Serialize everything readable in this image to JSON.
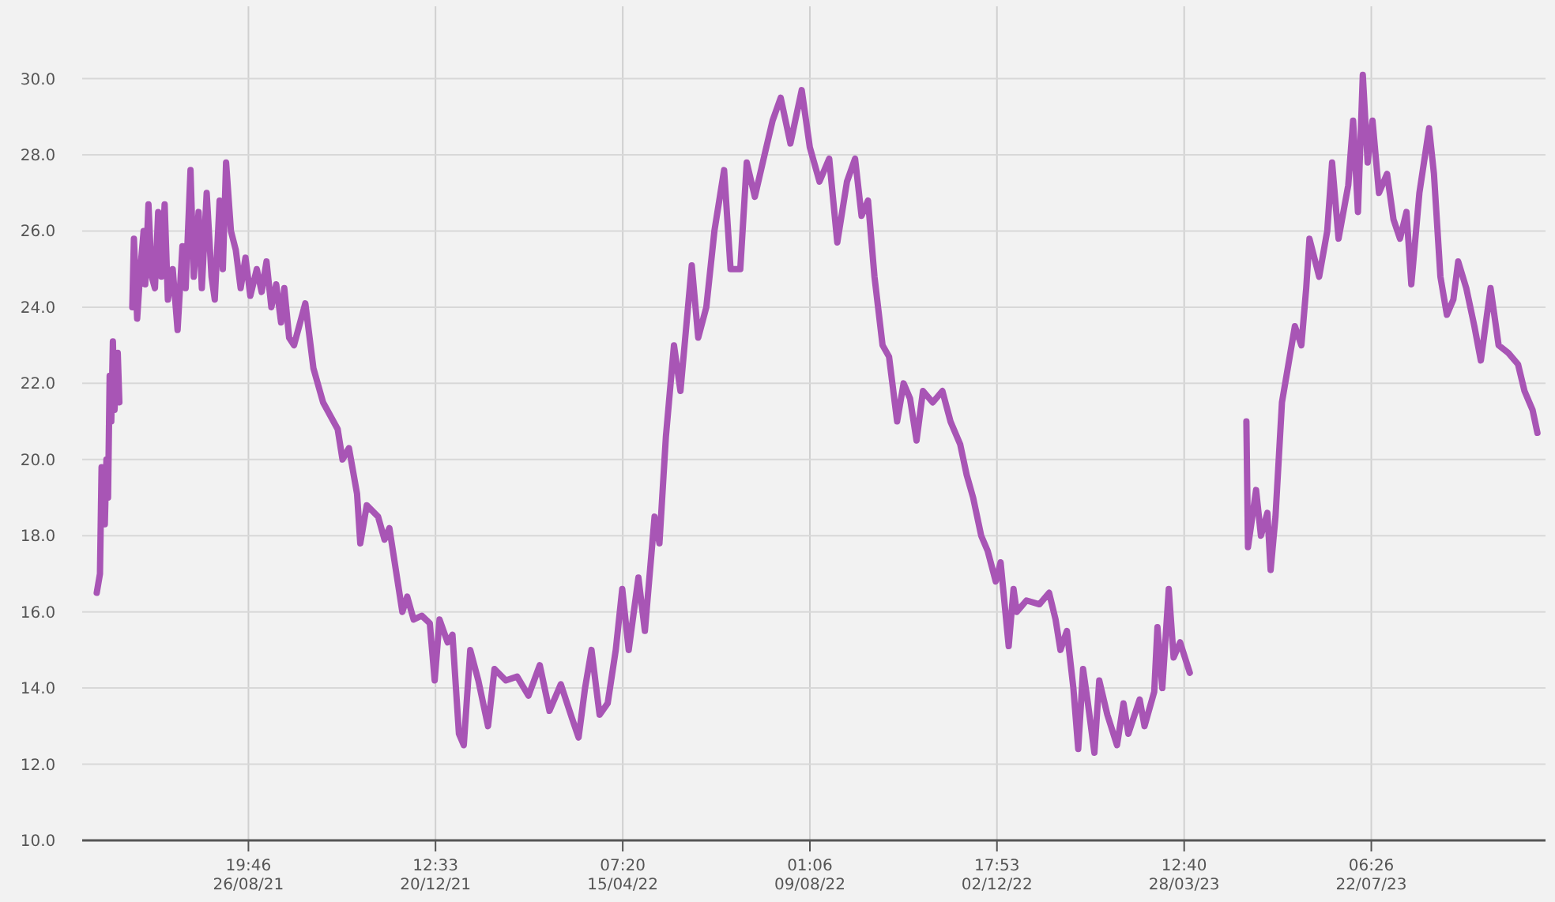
{
  "chart_data": {
    "type": "line",
    "xlim": [
      "2021-05-16",
      "2023-11-07"
    ],
    "ylim": [
      10,
      31.9
    ],
    "xticks": [
      {
        "value": "2021-08-26T19:46",
        "label": "19:46\n26/08/21"
      },
      {
        "value": "2021-12-20T12:33",
        "label": "12:33\n20/12/21"
      },
      {
        "value": "2022-04-15T07:20",
        "label": "07:20\n15/04/22"
      },
      {
        "value": "2022-08-09T01:06",
        "label": "01:06\n09/08/22"
      },
      {
        "value": "2022-12-02T17:53",
        "label": "17:53\n02/12/22"
      },
      {
        "value": "2023-03-28T12:40",
        "label": "12:40\n28/03/23"
      },
      {
        "value": "2023-07-22T06:26",
        "label": "06:26\n22/07/23"
      }
    ],
    "yticks": [
      {
        "value": 10,
        "label": "10.0"
      },
      {
        "value": 12,
        "label": "12.0"
      },
      {
        "value": 14,
        "label": "14.0"
      },
      {
        "value": 16,
        "label": "16.0"
      },
      {
        "value": 18,
        "label": "18.0"
      },
      {
        "value": 20,
        "label": "20.0"
      },
      {
        "value": 22,
        "label": "22.0"
      },
      {
        "value": 24,
        "label": "24.0"
      },
      {
        "value": 26,
        "label": "26.0"
      },
      {
        "value": 28,
        "label": "28.0"
      },
      {
        "value": 30,
        "label": "30.0"
      }
    ],
    "grid": true,
    "line_style": "solid",
    "marker": "none",
    "x": [
      "2021-05-25",
      "2021-05-27",
      "2021-05-28",
      "2021-05-30",
      "2021-05-31",
      "2021-06-01",
      "2021-06-02",
      "2021-06-03",
      "2021-06-04",
      "2021-06-05",
      "2021-06-07",
      "2021-06-08",
      "2021-06-12",
      "2021-06-16",
      "2021-06-17",
      "2021-06-19",
      "2021-06-21",
      "2021-06-23",
      "2021-06-24",
      "2021-06-26",
      "2021-06-28",
      "2021-06-30",
      "2021-07-02",
      "2021-07-04",
      "2021-07-06",
      "2021-07-08",
      "2021-07-11",
      "2021-07-14",
      "2021-07-17",
      "2021-07-19",
      "2021-07-22",
      "2021-07-24",
      "2021-07-27",
      "2021-07-29",
      "2021-08-01",
      "2021-08-04",
      "2021-08-06",
      "2021-08-09",
      "2021-08-11",
      "2021-08-13",
      "2021-08-16",
      "2021-08-19",
      "2021-08-22",
      "2021-08-25",
      "2021-08-28",
      "2021-09-01",
      "2021-09-04",
      "2021-09-07",
      "2021-09-10",
      "2021-09-13",
      "2021-09-16",
      "2021-09-18",
      "2021-09-21",
      "2021-09-24",
      "2021-10-01",
      "2021-10-06",
      "2021-10-12",
      "2021-10-21",
      "2021-10-24",
      "2021-10-28",
      "2021-11-02",
      "2021-11-04",
      "2021-11-08",
      "2021-11-15",
      "2021-11-19",
      "2021-11-22",
      "2021-11-30",
      "2021-12-03",
      "2021-12-07",
      "2021-12-12",
      "2021-12-17",
      "2021-12-20",
      "2021-12-23",
      "2021-12-28",
      "2021-12-31",
      "2022-01-04",
      "2022-01-07",
      "2022-01-11",
      "2022-01-16",
      "2022-01-22",
      "2022-01-26",
      "2022-02-02",
      "2022-02-09",
      "2022-02-16",
      "2022-02-23",
      "2022-03-01",
      "2022-03-08",
      "2022-03-15",
      "2022-03-19",
      "2022-03-23",
      "2022-03-27",
      "2022-04-01",
      "2022-04-06",
      "2022-04-11",
      "2022-04-15",
      "2022-04-19",
      "2022-04-25",
      "2022-04-29",
      "2022-05-05",
      "2022-05-08",
      "2022-05-12",
      "2022-05-17",
      "2022-05-21",
      "2022-05-28",
      "2022-06-01",
      "2022-06-06",
      "2022-06-11",
      "2022-06-17",
      "2022-06-21",
      "2022-06-27",
      "2022-07-01",
      "2022-07-06",
      "2022-07-12",
      "2022-07-17",
      "2022-07-22",
      "2022-07-28",
      "2022-08-04",
      "2022-08-09",
      "2022-08-15",
      "2022-08-21",
      "2022-08-26",
      "2022-09-01",
      "2022-09-06",
      "2022-09-10",
      "2022-09-14",
      "2022-09-18",
      "2022-09-23",
      "2022-09-27",
      "2022-10-02",
      "2022-10-06",
      "2022-10-10",
      "2022-10-14",
      "2022-10-18",
      "2022-10-24",
      "2022-10-30",
      "2022-11-04",
      "2022-11-10",
      "2022-11-14",
      "2022-11-18",
      "2022-11-23",
      "2022-11-27",
      "2022-12-02",
      "2022-12-05",
      "2022-12-10",
      "2022-12-13",
      "2022-12-15",
      "2022-12-21",
      "2022-12-29",
      "2023-01-04",
      "2023-01-08",
      "2023-01-11",
      "2023-01-15",
      "2023-01-19",
      "2023-01-22",
      "2023-01-25",
      "2023-01-28",
      "2023-02-01",
      "2023-02-04",
      "2023-02-09",
      "2023-02-15",
      "2023-02-19",
      "2023-02-22",
      "2023-03-01",
      "2023-03-04",
      "2023-03-10",
      "2023-03-12",
      "2023-03-15",
      "2023-03-19",
      "2023-03-22",
      "2023-03-26",
      "2023-04-01",
      "2023-04-20",
      "2023-05-06",
      "2023-05-07",
      "2023-05-12",
      "2023-05-15",
      "2023-05-19",
      "2023-05-21",
      "2023-05-24",
      "2023-05-28",
      "2023-06-01",
      "2023-06-05",
      "2023-06-09",
      "2023-06-12",
      "2023-06-14",
      "2023-06-20",
      "2023-06-25",
      "2023-06-28",
      "2023-07-02",
      "2023-07-08",
      "2023-07-11",
      "2023-07-14",
      "2023-07-17",
      "2023-07-20",
      "2023-07-23",
      "2023-07-27",
      "2023-08-01",
      "2023-08-05",
      "2023-08-09",
      "2023-08-13",
      "2023-08-16",
      "2023-08-21",
      "2023-08-27",
      "2023-08-30",
      "2023-09-03",
      "2023-09-07",
      "2023-09-11",
      "2023-09-14",
      "2023-09-19",
      "2023-09-24",
      "2023-09-28",
      "2023-10-04",
      "2023-10-09",
      "2023-10-15",
      "2023-10-21",
      "2023-10-25",
      "2023-10-30",
      "2023-11-02"
    ],
    "series": [
      {
        "color": "#a855b5",
        "values": [
          16.5,
          17.0,
          19.8,
          18.3,
          20.0,
          19.0,
          22.2,
          21.0,
          23.1,
          21.3,
          22.8,
          21.5,
          null,
          24.0,
          25.8,
          23.7,
          25.0,
          26.0,
          24.6,
          26.7,
          24.8,
          24.5,
          26.5,
          24.8,
          26.7,
          24.2,
          25.0,
          23.4,
          25.6,
          24.5,
          27.6,
          24.8,
          26.5,
          24.5,
          27.0,
          24.8,
          24.2,
          26.8,
          25.0,
          27.8,
          26.0,
          25.5,
          24.5,
          25.3,
          24.3,
          25.0,
          24.4,
          25.2,
          24.0,
          24.6,
          23.6,
          24.5,
          23.2,
          23.0,
          24.1,
          22.4,
          21.5,
          20.8,
          20.0,
          20.3,
          19.1,
          17.8,
          18.8,
          18.5,
          17.9,
          18.2,
          16.0,
          16.4,
          15.8,
          15.9,
          15.7,
          14.2,
          15.8,
          15.2,
          15.4,
          12.8,
          12.5,
          15.0,
          14.2,
          13.0,
          14.5,
          14.2,
          14.3,
          13.8,
          14.6,
          13.4,
          14.1,
          13.2,
          12.7,
          14.0,
          15.0,
          13.3,
          13.6,
          15.0,
          16.6,
          15.0,
          16.9,
          15.5,
          18.5,
          17.8,
          20.6,
          23.0,
          21.8,
          25.1,
          23.2,
          24.0,
          26.0,
          27.6,
          25.0,
          25.0,
          27.8,
          26.9,
          28.0,
          28.9,
          29.5,
          28.3,
          29.7,
          28.2,
          27.3,
          27.9,
          25.7,
          27.3,
          27.9,
          26.4,
          26.8,
          24.8,
          23.0,
          22.7,
          21.0,
          22.0,
          21.6,
          20.5,
          21.8,
          21.5,
          21.8,
          21.0,
          20.4,
          19.6,
          19.0,
          18.0,
          17.6,
          16.8,
          17.3,
          15.1,
          16.6,
          16.0,
          16.3,
          16.2,
          16.5,
          15.8,
          15.0,
          15.5,
          14.0,
          12.4,
          14.5,
          13.6,
          12.3,
          14.2,
          13.3,
          12.5,
          13.6,
          12.8,
          13.7,
          13.0,
          13.9,
          15.6,
          14.0,
          16.6,
          14.8,
          15.2,
          14.4,
          null,
          21.0,
          17.7,
          19.2,
          18.0,
          18.6,
          17.1,
          18.5,
          21.5,
          22.5,
          23.5,
          23.0,
          24.5,
          25.8,
          24.8,
          26.0,
          27.8,
          25.8,
          27.2,
          28.9,
          26.5,
          30.1,
          27.8,
          28.9,
          27.0,
          27.5,
          26.3,
          25.8,
          26.5,
          24.6,
          27.0,
          28.7,
          27.5,
          24.8,
          23.8,
          24.2,
          25.2,
          24.5,
          23.5,
          22.6,
          24.5,
          23.0,
          22.8,
          22.5,
          21.8,
          21.3,
          20.7
        ]
      }
    ]
  }
}
